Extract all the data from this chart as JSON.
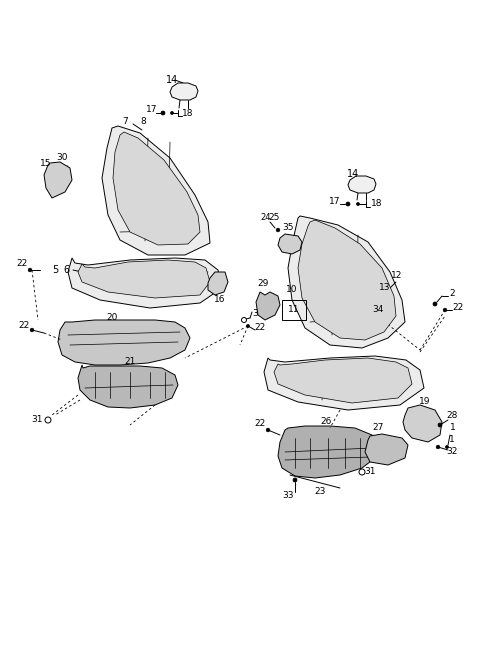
{
  "bg_color": "#ffffff",
  "line_color": "#000000",
  "label_color": "#000000",
  "figsize": [
    4.8,
    6.56
  ],
  "dpi": 100
}
